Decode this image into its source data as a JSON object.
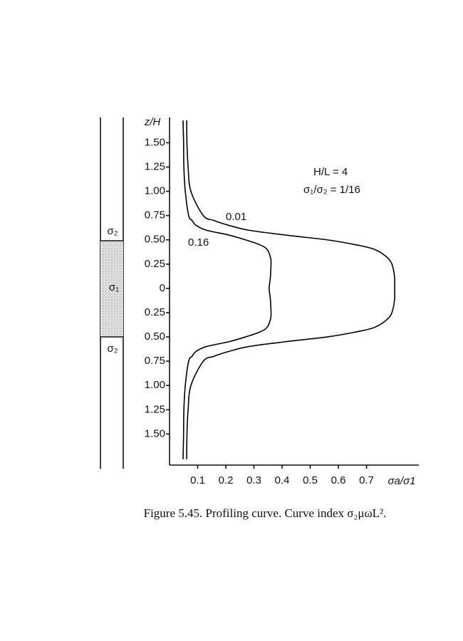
{
  "chart_data": {
    "type": "profile",
    "caption": "Figure 5.45. Profiling curve. Curve index σ₂μωL².",
    "y_label": "z/H",
    "x_label": "σa/σ1",
    "annotations": [
      "H/L = 4",
      "σ₁/σ₂ = 1/16"
    ],
    "layer_labels": [
      "σ₂",
      "σ₁",
      "σ₂"
    ],
    "xlim": [
      0,
      0.886
    ],
    "xticks": [
      0.1,
      0.2,
      0.3,
      0.4,
      0.5,
      0.6,
      0.7
    ],
    "ylim": [
      -1.82,
      1.76
    ],
    "yticks": [
      1.5,
      1.25,
      1,
      0.75,
      0.5,
      0.25,
      0,
      {
        "value": -0.25,
        "label": "0.25"
      },
      {
        "value": -0.5,
        "label": "0.50"
      },
      {
        "value": -0.75,
        "label": "0.75"
      },
      {
        "value": -1,
        "label": "1.00"
      },
      {
        "value": -1.25,
        "label": "1.25"
      },
      {
        "value": -1.5,
        "label": "1.50"
      }
    ],
    "ytick_labels": [
      "1.50",
      "1.25",
      "1.00",
      "0.75",
      "0.50",
      "0.25",
      "0"
    ],
    "z": [
      1.73,
      1.5,
      1.25,
      1.0,
      0.75,
      0.7,
      0.65,
      0.6,
      0.55,
      0.5,
      0.45,
      0.4,
      0.3,
      0.2,
      0.1,
      0,
      -0.1,
      -0.2,
      -0.3,
      -0.4,
      -0.45,
      -0.5,
      -0.55,
      -0.6,
      -0.65,
      -0.7,
      -0.75,
      -1.0,
      -1.25,
      -1.5,
      -1.76
    ],
    "series": [
      {
        "name": "0.01",
        "color": "#000000",
        "values": [
          0.061,
          0.062,
          0.066,
          0.076,
          0.12,
          0.157,
          0.21,
          0.28,
          0.41,
          0.56,
          0.66,
          0.73,
          0.78,
          0.795,
          0.8,
          0.8,
          0.8,
          0.795,
          0.78,
          0.73,
          0.66,
          0.56,
          0.41,
          0.28,
          0.21,
          0.157,
          0.12,
          0.076,
          0.066,
          0.062,
          0.061
        ]
      },
      {
        "name": "0.16",
        "color": "#000000",
        "values": [
          0.048,
          0.05,
          0.051,
          0.056,
          0.068,
          0.08,
          0.094,
          0.13,
          0.21,
          0.27,
          0.32,
          0.347,
          0.36,
          0.36,
          0.358,
          0.354,
          0.358,
          0.36,
          0.36,
          0.347,
          0.32,
          0.27,
          0.21,
          0.13,
          0.094,
          0.08,
          0.068,
          0.056,
          0.051,
          0.05,
          0.048
        ]
      }
    ]
  }
}
